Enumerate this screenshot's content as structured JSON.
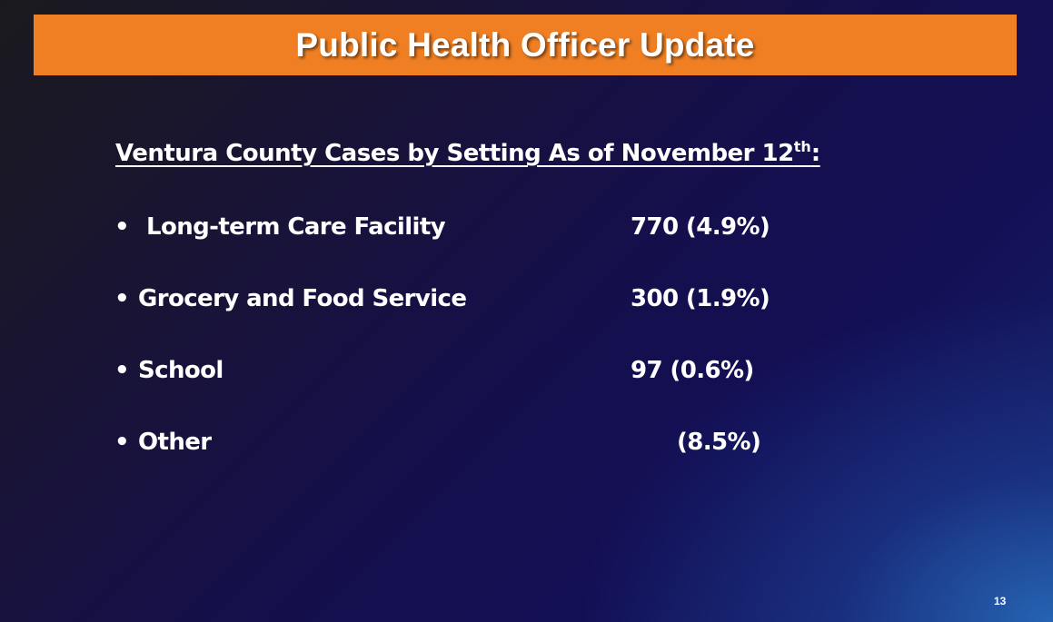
{
  "slide": {
    "title": "Public Health Officer Update",
    "subtitle_main": "Ventura County Cases by Setting As of November 12",
    "subtitle_sup": "th",
    "subtitle_end": ":",
    "page_number": "13"
  },
  "items": [
    {
      "bullet": "•",
      "label": "Long-term Care Facility",
      "value": "770 (4.9%)"
    },
    {
      "bullet": "•",
      "label": "Grocery and Food Service",
      "value": "300 (1.9%)"
    },
    {
      "bullet": "•",
      "label": "School",
      "value": "97 (0.6%)"
    },
    {
      "bullet": "•",
      "label": "Other",
      "value": "(8.5%)"
    }
  ],
  "colors": {
    "title_bar": "#f07f23",
    "text": "#ffffff",
    "background_dark": "#150f4a",
    "background_light": "#286ebe"
  }
}
